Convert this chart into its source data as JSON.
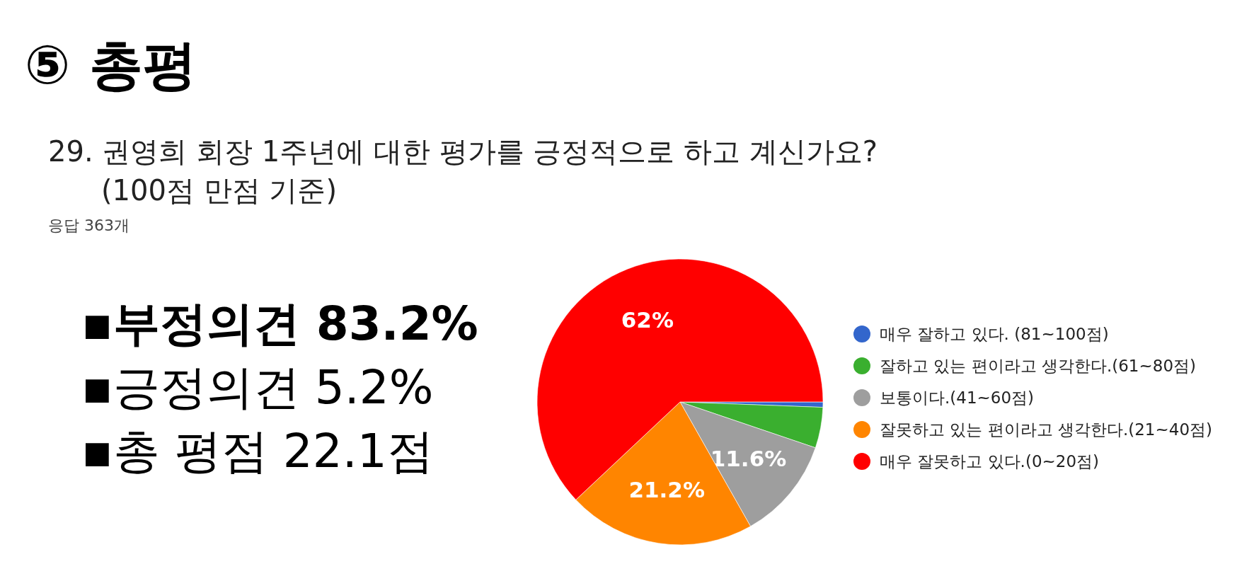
{
  "chart_data": {
    "type": "pie",
    "title": "⑤ 총평",
    "subtitle": "29. 권영희 회장 1주년에 대한 평가를 긍정적으로 하고 계신가요?\n(100점 만점 기준)",
    "annotations": [
      "응답 363개",
      "▪부정의견 83.2%",
      "▪긍정의견 5.2%",
      "▪총 평점 22.1점"
    ],
    "categories": [
      "매우 잘하고 있다. (81~100점)",
      "잘하고 있는 편이라고 생각한다.(61~80점)",
      "보통이다.(41~60점)",
      "잘못하고 있는 편이라고 생각한다.(21~40점)",
      "매우 잘못하고 있다.(0~20점)"
    ],
    "values": [
      0.6,
      4.6,
      11.6,
      21.2,
      62
    ],
    "value_labels": [
      null,
      null,
      "11.6%",
      "21.2%",
      "62%"
    ],
    "colors": [
      "#3366cc",
      "#3aaf2f",
      "#9e9e9e",
      "#ff8500",
      "#ff0000"
    ],
    "legend": "right"
  }
}
